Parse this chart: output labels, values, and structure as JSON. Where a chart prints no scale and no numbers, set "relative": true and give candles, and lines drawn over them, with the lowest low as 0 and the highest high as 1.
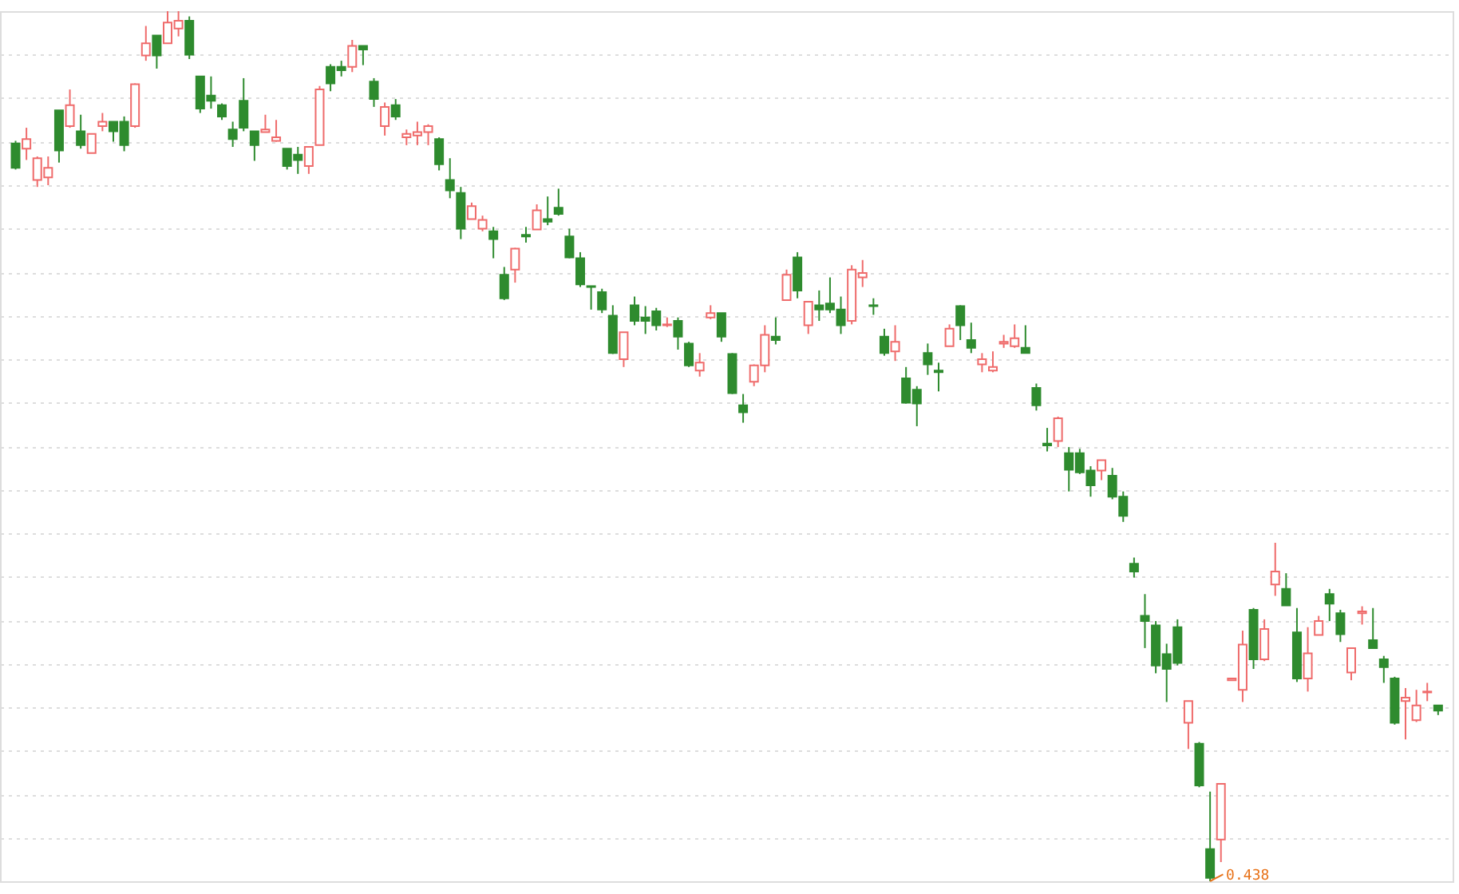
{
  "chart_data": {
    "type": "candlestick",
    "relative": true,
    "grid": true,
    "tick_labels": false,
    "annotations": [
      "0.438"
    ],
    "categories": [
      null,
      null,
      null,
      null,
      null,
      null,
      null,
      null,
      null,
      null,
      null,
      null,
      null,
      null,
      null,
      null,
      null,
      null,
      null,
      null,
      null,
      null,
      null,
      null,
      null,
      null,
      null,
      null,
      null,
      null,
      null,
      null,
      null,
      null,
      null,
      null,
      null,
      null,
      null,
      null,
      null,
      null,
      null,
      null,
      null,
      null,
      null,
      null,
      null,
      null,
      null,
      null,
      null,
      null,
      null,
      null,
      null,
      null,
      null,
      null,
      null,
      null,
      null,
      null,
      null,
      null,
      null,
      null,
      null,
      null,
      null,
      null,
      null,
      null,
      null,
      null,
      null,
      null,
      null,
      null,
      null,
      null,
      null,
      null,
      null,
      null,
      null,
      null,
      null,
      null,
      null,
      null,
      null,
      null,
      null,
      null,
      null,
      null,
      null,
      null,
      null,
      null,
      null,
      null,
      null,
      null,
      null,
      null,
      null,
      null,
      null,
      null,
      null,
      null,
      null,
      null,
      null,
      null,
      null,
      null,
      null,
      null,
      null,
      null,
      null,
      null,
      null,
      null,
      null,
      null,
      null,
      null
    ],
    "ohlc": [
      [
        0.848,
        0.851,
        0.818,
        0.82
      ],
      [
        0.842,
        0.866,
        0.829,
        0.853
      ],
      [
        0.806,
        0.833,
        0.798,
        0.831
      ],
      [
        0.809,
        0.833,
        0.8,
        0.82
      ],
      [
        0.886,
        0.886,
        0.826,
        0.84
      ],
      [
        0.868,
        0.91,
        0.866,
        0.892
      ],
      [
        0.862,
        0.881,
        0.842,
        0.846
      ],
      [
        0.837,
        0.859,
        0.837,
        0.859
      ],
      [
        0.868,
        0.883,
        0.862,
        0.873
      ],
      [
        0.873,
        0.873,
        0.85,
        0.862
      ],
      [
        0.873,
        0.879,
        0.839,
        0.846
      ],
      [
        0.868,
        0.917,
        0.866,
        0.916
      ],
      [
        0.949,
        0.983,
        0.943,
        0.963
      ],
      [
        0.972,
        0.972,
        0.934,
        0.949
      ],
      [
        0.963,
        1.0,
        0.963,
        0.987
      ],
      [
        0.98,
        1.0,
        0.971,
        0.989
      ],
      [
        0.989,
        0.994,
        0.945,
        0.95
      ],
      [
        0.925,
        0.925,
        0.883,
        0.888
      ],
      [
        0.903,
        0.925,
        0.888,
        0.897
      ],
      [
        0.892,
        0.894,
        0.875,
        0.879
      ],
      [
        0.864,
        0.873,
        0.844,
        0.853
      ],
      [
        0.897,
        0.923,
        0.862,
        0.866
      ],
      [
        0.862,
        0.862,
        0.828,
        0.846
      ],
      [
        0.861,
        0.881,
        0.861,
        0.864
      ],
      [
        0.851,
        0.875,
        0.85,
        0.855
      ],
      [
        0.842,
        0.842,
        0.818,
        0.822
      ],
      [
        0.835,
        0.844,
        0.813,
        0.829
      ],
      [
        0.822,
        0.844,
        0.813,
        0.844
      ],
      [
        0.846,
        0.914,
        0.846,
        0.91
      ],
      [
        0.936,
        0.939,
        0.908,
        0.917
      ],
      [
        0.936,
        0.943,
        0.925,
        0.932
      ],
      [
        0.936,
        0.967,
        0.93,
        0.96
      ],
      [
        0.96,
        0.96,
        0.938,
        0.956
      ],
      [
        0.919,
        0.923,
        0.89,
        0.899
      ],
      [
        0.868,
        0.895,
        0.857,
        0.89
      ],
      [
        0.892,
        0.899,
        0.875,
        0.879
      ],
      [
        0.855,
        0.864,
        0.846,
        0.859
      ],
      [
        0.857,
        0.873,
        0.846,
        0.861
      ],
      [
        0.861,
        0.87,
        0.846,
        0.868
      ],
      [
        0.853,
        0.855,
        0.817,
        0.824
      ],
      [
        0.806,
        0.831,
        0.785,
        0.794
      ],
      [
        0.791,
        0.798,
        0.738,
        0.75
      ],
      [
        0.761,
        0.78,
        0.761,
        0.776
      ],
      [
        0.75,
        0.765,
        0.747,
        0.76
      ],
      [
        0.747,
        0.752,
        0.716,
        0.738
      ],
      [
        0.697,
        0.706,
        0.668,
        0.67
      ],
      [
        0.703,
        0.728,
        0.688,
        0.727
      ],
      [
        0.743,
        0.752,
        0.734,
        0.741
      ],
      [
        0.749,
        0.778,
        0.749,
        0.771
      ],
      [
        0.761,
        0.787,
        0.754,
        0.758
      ],
      [
        0.774,
        0.796,
        0.765,
        0.767
      ],
      [
        0.741,
        0.75,
        0.716,
        0.717
      ],
      [
        0.716,
        0.723,
        0.683,
        0.686
      ],
      [
        0.684,
        0.684,
        0.657,
        0.683
      ],
      [
        0.677,
        0.681,
        0.653,
        0.657
      ],
      [
        0.65,
        0.662,
        0.606,
        0.607
      ],
      [
        0.6,
        0.631,
        0.591,
        0.631
      ],
      [
        0.662,
        0.672,
        0.639,
        0.644
      ],
      [
        0.648,
        0.661,
        0.629,
        0.644
      ],
      [
        0.655,
        0.659,
        0.633,
        0.639
      ],
      [
        0.639,
        0.648,
        0.637,
        0.64
      ],
      [
        0.644,
        0.648,
        0.611,
        0.626
      ],
      [
        0.618,
        0.62,
        0.591,
        0.593
      ],
      [
        0.587,
        0.607,
        0.58,
        0.596
      ],
      [
        0.648,
        0.662,
        0.646,
        0.653
      ],
      [
        0.653,
        0.653,
        0.62,
        0.626
      ],
      [
        0.606,
        0.607,
        0.56,
        0.561
      ],
      [
        0.547,
        0.56,
        0.527,
        0.539
      ],
      [
        0.574,
        0.594,
        0.569,
        0.593
      ],
      [
        0.593,
        0.639,
        0.585,
        0.628
      ],
      [
        0.626,
        0.648,
        0.617,
        0.622
      ],
      [
        0.668,
        0.703,
        0.668,
        0.697
      ],
      [
        0.717,
        0.723,
        0.67,
        0.679
      ],
      [
        0.639,
        0.666,
        0.629,
        0.666
      ],
      [
        0.662,
        0.679,
        0.644,
        0.657
      ],
      [
        0.664,
        0.694,
        0.653,
        0.657
      ],
      [
        0.657,
        0.672,
        0.629,
        0.639
      ],
      [
        0.644,
        0.708,
        0.64,
        0.703
      ],
      [
        0.694,
        0.714,
        0.683,
        0.699
      ],
      [
        0.662,
        0.67,
        0.651,
        0.661
      ],
      [
        0.626,
        0.635,
        0.604,
        0.607
      ],
      [
        0.609,
        0.639,
        0.598,
        0.62
      ],
      [
        0.578,
        0.591,
        0.549,
        0.55
      ],
      [
        0.565,
        0.569,
        0.523,
        0.549
      ],
      [
        0.607,
        0.618,
        0.582,
        0.594
      ],
      [
        0.587,
        0.596,
        0.563,
        0.585
      ],
      [
        0.615,
        0.64,
        0.615,
        0.635
      ],
      [
        0.661,
        0.662,
        0.622,
        0.639
      ],
      [
        0.622,
        0.642,
        0.607,
        0.613
      ],
      [
        0.594,
        0.607,
        0.585,
        0.6
      ],
      [
        0.587,
        0.609,
        0.585,
        0.591
      ],
      [
        0.618,
        0.628,
        0.613,
        0.62
      ],
      [
        0.615,
        0.64,
        0.613,
        0.624
      ],
      [
        0.613,
        0.639,
        0.607,
        0.607
      ],
      [
        0.567,
        0.572,
        0.541,
        0.547
      ],
      [
        0.503,
        0.521,
        0.494,
        0.501
      ],
      [
        0.506,
        0.534,
        0.499,
        0.532
      ],
      [
        0.492,
        0.499,
        0.448,
        0.473
      ],
      [
        0.492,
        0.497,
        0.468,
        0.47
      ],
      [
        0.472,
        0.477,
        0.442,
        0.455
      ],
      [
        0.472,
        0.484,
        0.461,
        0.484
      ],
      [
        0.466,
        0.475,
        0.439,
        0.442
      ],
      [
        0.442,
        0.448,
        0.413,
        0.42
      ],
      [
        0.365,
        0.372,
        0.349,
        0.356
      ],
      [
        0.305,
        0.33,
        0.268,
        0.299
      ],
      [
        0.294,
        0.299,
        0.239,
        0.248
      ],
      [
        0.261,
        0.273,
        0.206,
        0.244
      ],
      [
        0.292,
        0.301,
        0.248,
        0.251
      ],
      [
        0.182,
        0.207,
        0.152,
        0.207
      ],
      [
        0.158,
        0.16,
        0.108,
        0.11
      ],
      [
        0.037,
        0.103,
        0.0,
        0.004
      ],
      [
        0.048,
        0.112,
        0.022,
        0.112
      ],
      [
        0.231,
        0.233,
        0.231,
        0.233
      ],
      [
        0.22,
        0.288,
        0.206,
        0.272
      ],
      [
        0.312,
        0.314,
        0.244,
        0.255
      ],
      [
        0.255,
        0.301,
        0.253,
        0.29
      ],
      [
        0.341,
        0.389,
        0.328,
        0.356
      ],
      [
        0.336,
        0.354,
        0.317,
        0.317
      ],
      [
        0.286,
        0.314,
        0.229,
        0.233
      ],
      [
        0.233,
        0.292,
        0.218,
        0.262
      ],
      [
        0.283,
        0.305,
        0.283,
        0.299
      ],
      [
        0.33,
        0.336,
        0.299,
        0.319
      ],
      [
        0.308,
        0.312,
        0.275,
        0.284
      ],
      [
        0.24,
        0.268,
        0.231,
        0.268
      ],
      [
        0.308,
        0.316,
        0.295,
        0.31
      ],
      [
        0.277,
        0.314,
        0.268,
        0.268
      ],
      [
        0.255,
        0.259,
        0.228,
        0.246
      ],
      [
        0.233,
        0.235,
        0.18,
        0.182
      ],
      [
        0.207,
        0.222,
        0.163,
        0.211
      ],
      [
        0.185,
        0.22,
        0.183,
        0.202
      ],
      [
        0.217,
        0.228,
        0.207,
        0.218
      ],
      [
        0.202,
        0.202,
        0.191,
        0.196
      ]
    ],
    "colors": [
      "#2e8b2e",
      "#ef6b6b",
      "#ef6b6b",
      "#ef6b6b",
      "#2e8b2e",
      "#ef6b6b",
      "#2e8b2e",
      "#ef6b6b",
      "#ef6b6b",
      "#2e8b2e",
      "#2e8b2e",
      "#ef6b6b",
      "#ef6b6b",
      "#2e8b2e",
      "#ef6b6b",
      "#ef6b6b",
      "#2e8b2e",
      "#2e8b2e",
      "#2e8b2e",
      "#2e8b2e",
      "#2e8b2e",
      "#2e8b2e",
      "#2e8b2e",
      "#ef6b6b",
      "#ef6b6b",
      "#2e8b2e",
      "#2e8b2e",
      "#ef6b6b",
      "#ef6b6b",
      "#2e8b2e",
      "#2e8b2e",
      "#ef6b6b",
      "#2e8b2e",
      "#2e8b2e",
      "#ef6b6b",
      "#2e8b2e",
      "#ef6b6b",
      "#ef6b6b",
      "#ef6b6b",
      "#2e8b2e",
      "#2e8b2e",
      "#2e8b2e",
      "#ef6b6b",
      "#ef6b6b",
      "#2e8b2e",
      "#2e8b2e",
      "#ef6b6b",
      "#2e8b2e",
      "#ef6b6b",
      "#2e8b2e",
      "#2e8b2e",
      "#2e8b2e",
      "#2e8b2e",
      "#2e8b2e",
      "#2e8b2e",
      "#2e8b2e",
      "#ef6b6b",
      "#2e8b2e",
      "#2e8b2e",
      "#2e8b2e",
      "#ef6b6b",
      "#2e8b2e",
      "#2e8b2e",
      "#ef6b6b",
      "#ef6b6b",
      "#2e8b2e",
      "#2e8b2e",
      "#2e8b2e",
      "#ef6b6b",
      "#ef6b6b",
      "#2e8b2e",
      "#ef6b6b",
      "#2e8b2e",
      "#ef6b6b",
      "#2e8b2e",
      "#2e8b2e",
      "#2e8b2e",
      "#ef6b6b",
      "#ef6b6b",
      "#2e8b2e",
      "#2e8b2e",
      "#ef6b6b",
      "#2e8b2e",
      "#2e8b2e",
      "#2e8b2e",
      "#2e8b2e",
      "#ef6b6b",
      "#2e8b2e",
      "#2e8b2e",
      "#ef6b6b",
      "#ef6b6b",
      "#ef6b6b",
      "#ef6b6b",
      "#2e8b2e",
      "#2e8b2e",
      "#2e8b2e",
      "#ef6b6b",
      "#2e8b2e",
      "#2e8b2e",
      "#2e8b2e",
      "#ef6b6b",
      "#2e8b2e",
      "#2e8b2e",
      "#2e8b2e",
      "#2e8b2e",
      "#2e8b2e",
      "#2e8b2e",
      "#2e8b2e",
      "#ef6b6b",
      "#2e8b2e",
      "#2e8b2e",
      "#ef6b6b",
      "#ef6b6b",
      "#ef6b6b",
      "#2e8b2e",
      "#ef6b6b",
      "#ef6b6b",
      "#2e8b2e",
      "#2e8b2e",
      "#ef6b6b",
      "#ef6b6b",
      "#2e8b2e",
      "#2e8b2e",
      "#ef6b6b",
      "#ef6b6b",
      "#2e8b2e",
      "#2e8b2e",
      "#2e8b2e",
      "#ef6b6b",
      "#ef6b6b",
      "#ef6b6b",
      "#2e8b2e"
    ]
  }
}
